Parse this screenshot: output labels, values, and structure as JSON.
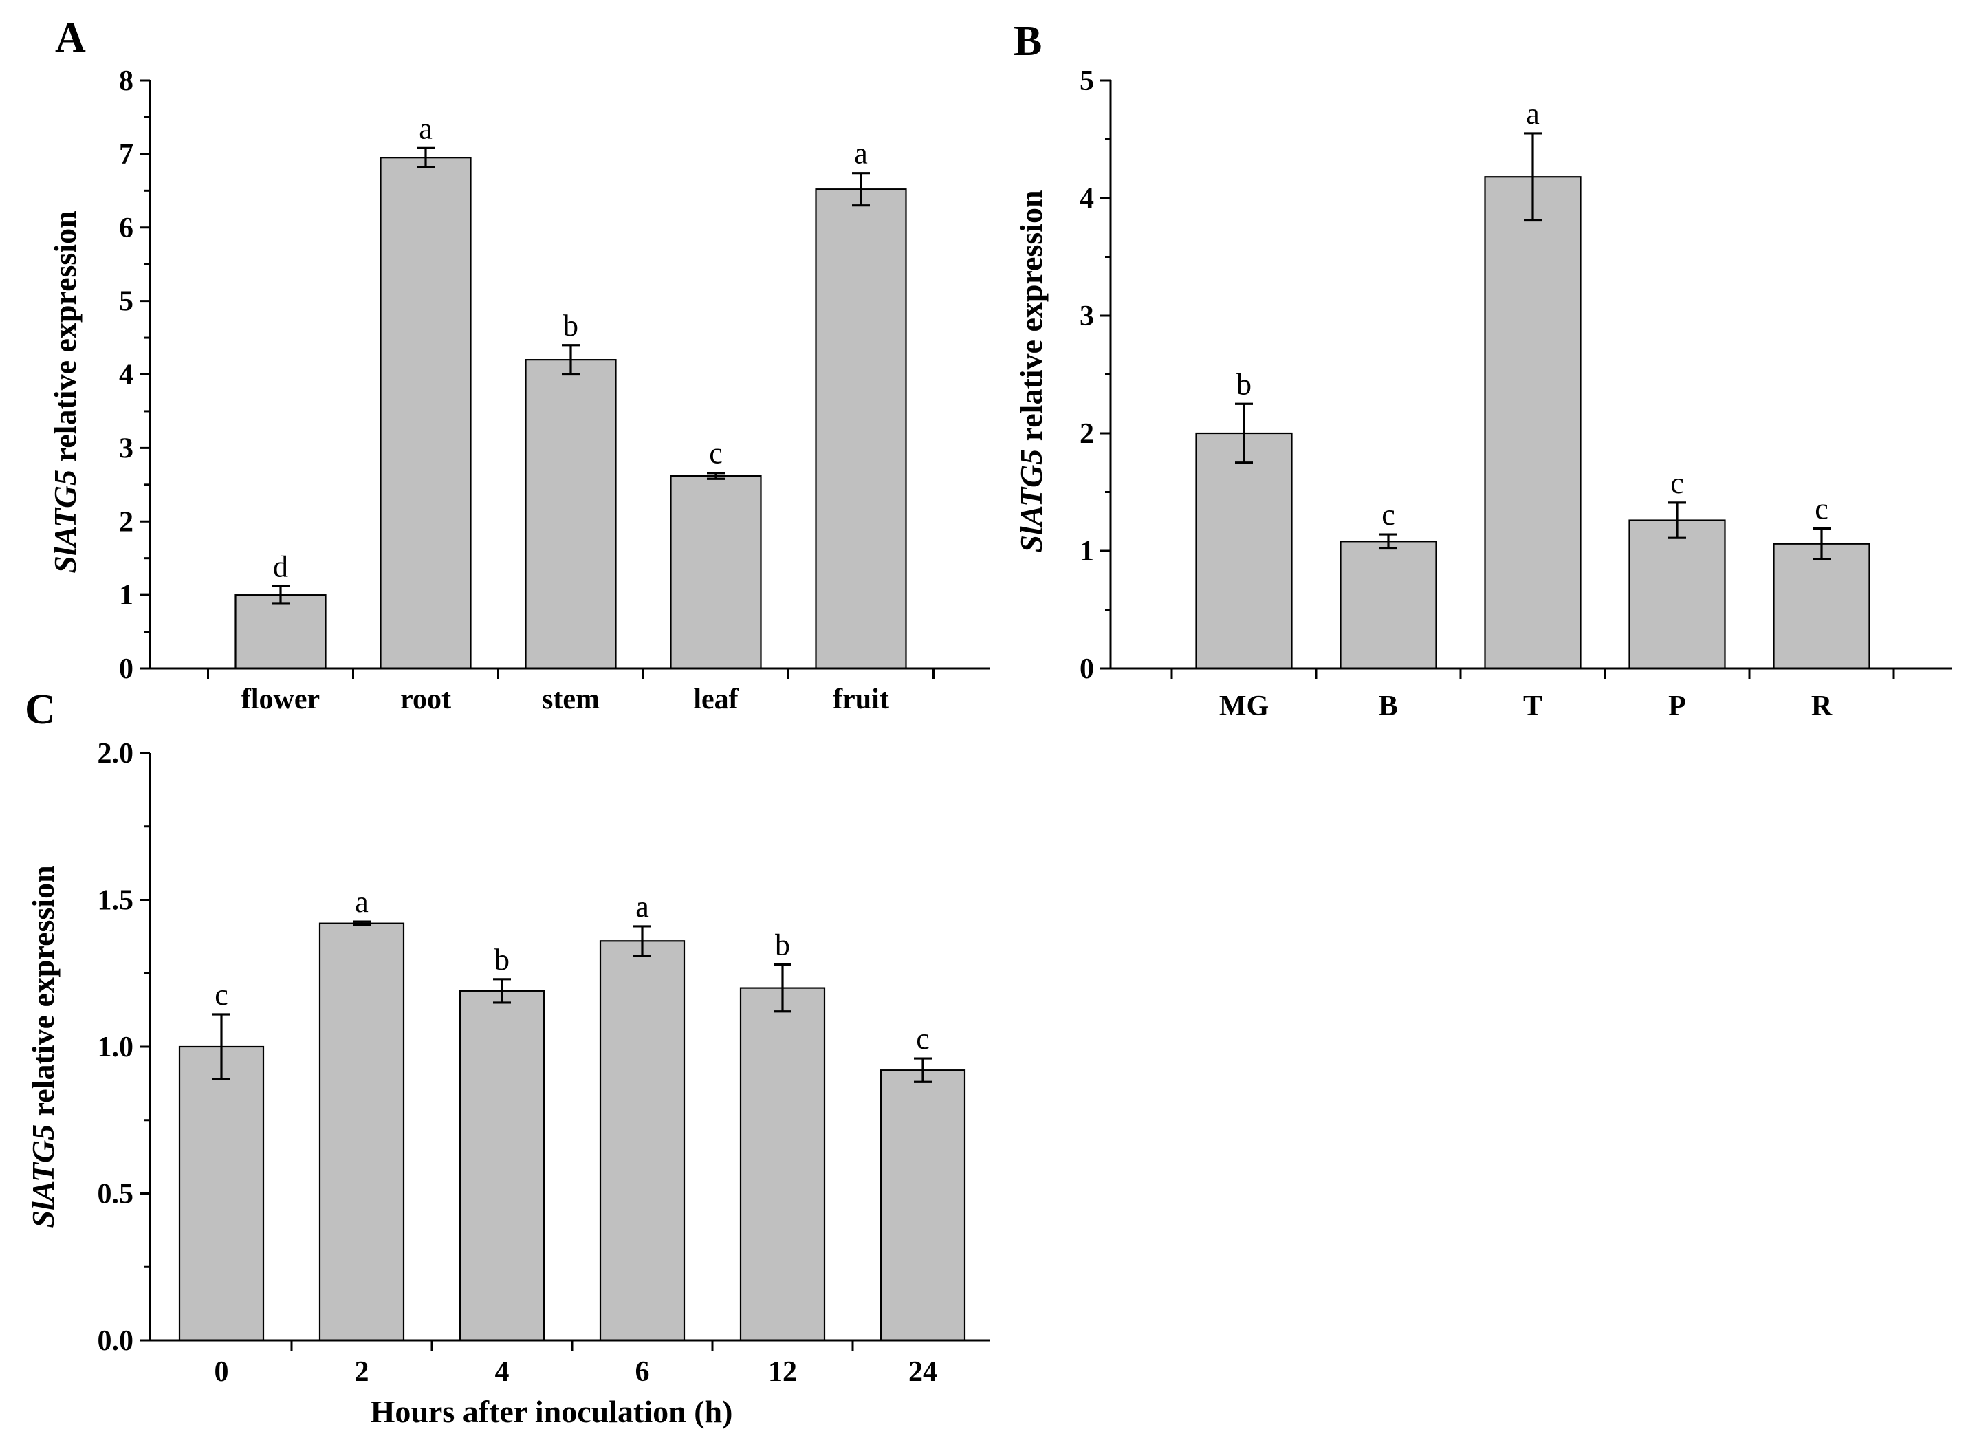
{
  "chart_data": [
    {
      "panel": "A",
      "type": "bar",
      "categories": [
        "flower",
        "root",
        "stem",
        "leaf",
        "fruit"
      ],
      "values": [
        1.0,
        6.95,
        4.2,
        2.62,
        6.52
      ],
      "errors": [
        0.12,
        0.13,
        0.2,
        0.04,
        0.22
      ],
      "significance": [
        "d",
        "a",
        "b",
        "c",
        "a"
      ],
      "ylabel_gene": "SlATG5",
      "ylabel_rest": " relative expression",
      "xlabel": "",
      "ylim": [
        0,
        8
      ],
      "yticks": [
        "0",
        "1",
        "2",
        "3",
        "4",
        "5",
        "6",
        "7",
        "8"
      ]
    },
    {
      "panel": "B",
      "type": "bar",
      "categories": [
        "MG",
        "B",
        "T",
        "P",
        "R"
      ],
      "values": [
        2.0,
        1.08,
        4.18,
        1.26,
        1.06
      ],
      "errors": [
        0.25,
        0.06,
        0.37,
        0.15,
        0.13
      ],
      "significance": [
        "b",
        "c",
        "a",
        "c",
        "c"
      ],
      "ylabel_gene": "SlATG5",
      "ylabel_rest": " relative expression",
      "xlabel": "",
      "ylim": [
        0,
        5
      ],
      "yticks": [
        "0",
        "1",
        "2",
        "3",
        "4",
        "5"
      ]
    },
    {
      "panel": "C",
      "type": "bar",
      "categories": [
        "0",
        "2",
        "4",
        "6",
        "12",
        "24"
      ],
      "values": [
        1.0,
        1.42,
        1.19,
        1.36,
        1.2,
        0.92
      ],
      "errors": [
        0.11,
        0.006,
        0.04,
        0.05,
        0.08,
        0.04
      ],
      "significance": [
        "c",
        "a",
        "b",
        "a",
        "b",
        "c"
      ],
      "ylabel_gene": "SlATG5",
      "ylabel_rest": " relative expression",
      "xlabel": "Hours after inoculation (h)",
      "ylim": [
        0,
        2
      ],
      "yticks": [
        "0.0",
        "0.5",
        "1.0",
        "1.5",
        "2.0"
      ]
    }
  ]
}
